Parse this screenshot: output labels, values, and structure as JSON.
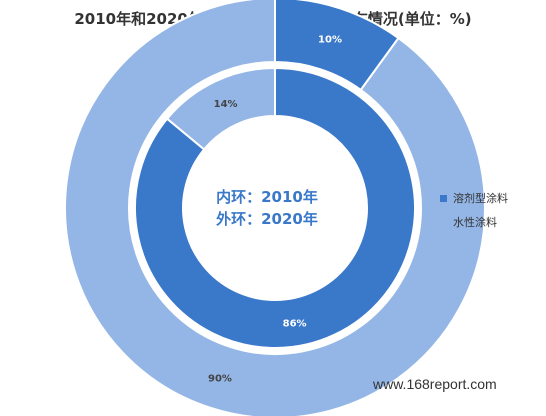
{
  "colors": {
    "solvent": "#3a78c9",
    "water": "#94b6e6",
    "background": "#ffffff"
  },
  "chart_data": {
    "type": "pie",
    "title": "2010年和2020年中国乘用车涂料类型分布情况(单位：%)",
    "center_label": [
      "内环：2010年",
      "外环：2020年"
    ],
    "legend": [
      "溶剂型涂料",
      "水性涂料"
    ],
    "legend_position": "right",
    "rings": [
      {
        "name": "2010年",
        "position": "inner",
        "slices": [
          {
            "label": "溶剂型涂料",
            "value": 86,
            "display": "86%"
          },
          {
            "label": "水性涂料",
            "value": 14,
            "display": "14%"
          }
        ]
      },
      {
        "name": "2020年",
        "position": "outer",
        "slices": [
          {
            "label": "溶剂型涂料",
            "value": 10,
            "display": "10%"
          },
          {
            "label": "水性涂料",
            "value": 90,
            "display": "90%"
          }
        ]
      }
    ]
  },
  "watermark": "www.168report.com"
}
